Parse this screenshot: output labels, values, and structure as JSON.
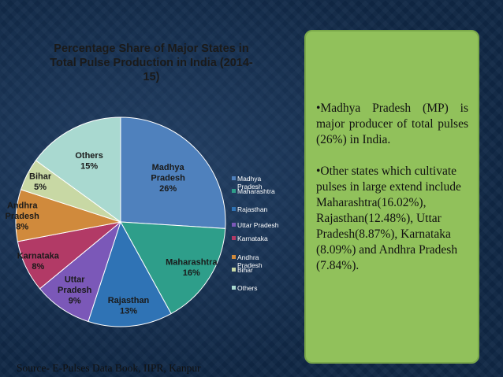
{
  "chart_data": {
    "type": "pie",
    "title": "Percentage Share of Major States in Total Pulse Production in India (2014-15)",
    "title_lines": [
      "Percentage Share of Major States in",
      "Total Pulse Production in India (2014-",
      "15)"
    ],
    "start_angle": "12 o'clock, clockwise",
    "legend": "right",
    "slices": [
      {
        "name": "Madhya Pradesh",
        "label_lines": [
          "Madhya",
          "Pradesh"
        ],
        "legend_lines": [
          "Madhya",
          "Pradesh"
        ],
        "value": 26,
        "pct_label": "26%",
        "color": "#4f81bd"
      },
      {
        "name": "Maharashtra",
        "label_lines": [
          "Maharashtra"
        ],
        "legend_lines": [
          "Maharashtra"
        ],
        "value": 16,
        "pct_label": "16%",
        "color": "#2e9e8a"
      },
      {
        "name": "Rajasthan",
        "label_lines": [
          "Rajasthan"
        ],
        "legend_lines": [
          "Rajasthan"
        ],
        "value": 13,
        "pct_label": "13%",
        "color": "#2f73b5"
      },
      {
        "name": "Uttar Pradesh",
        "label_lines": [
          "Uttar",
          "Pradesh"
        ],
        "legend_lines": [
          "Uttar Pradesh"
        ],
        "value": 9,
        "pct_label": "9%",
        "color": "#7b58b8"
      },
      {
        "name": "Karnataka",
        "label_lines": [
          "Karnataka"
        ],
        "legend_lines": [
          "Karnataka"
        ],
        "value": 8,
        "pct_label": "8%",
        "color": "#b23a66"
      },
      {
        "name": "Andhra Pradesh",
        "label_lines": [
          "Andhra",
          "Pradesh"
        ],
        "legend_lines": [
          "Andhra",
          "Pradesh"
        ],
        "value": 8,
        "pct_label": "8%",
        "color": "#d08a3c"
      },
      {
        "name": "Bihar",
        "label_lines": [
          "Bihar"
        ],
        "legend_lines": [
          "Bihar"
        ],
        "value": 5,
        "pct_label": "5%",
        "color": "#c8d8a4"
      },
      {
        "name": "Others",
        "label_lines": [
          "Others"
        ],
        "legend_lines": [
          "Others"
        ],
        "value": 15,
        "pct_label": "15%",
        "color": "#a9d9d0"
      }
    ]
  },
  "colors": {
    "background": "#0f2745",
    "callout_fill": "#91c15b",
    "chart_text": "#1a1a1a",
    "legend_text": "#ffffff"
  },
  "callout": {
    "bullet1": "•Madhya Pradesh (MP) is major producer of total pulses (26%) in India.",
    "bullet2": "•Other states which cultivate pulses in large extend include Maharashtra(16.02%), Rajasthan(12.48%), Uttar Pradesh(8.87%), Karnataka (8.09%) and Andhra Pradesh (7.84%)."
  },
  "footer": {
    "source": "Source- E-Pulses Data Book, IIPR, Kanpur"
  }
}
